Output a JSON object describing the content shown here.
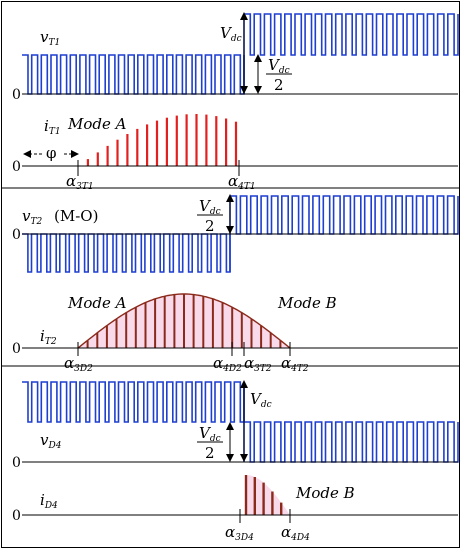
{
  "colors": {
    "switching": "#1f3fcf",
    "current_red": "#e32020",
    "current_dark": "#8b2a1a",
    "fill_pink": "#f7d3e8",
    "axis": "#000000"
  },
  "panel1": {
    "signal_main": "v",
    "signal_sub": "T1",
    "zero": "0",
    "vdc_main": "V",
    "vdc_sub": "dc",
    "half_num_main": "V",
    "half_num_sub": "dc",
    "half_den": "2"
  },
  "panel2": {
    "signal_main": "i",
    "signal_sub": "T1",
    "mode": "Mode A",
    "phi": "φ",
    "zero": "0",
    "alpha_3_main": "α",
    "alpha_3_sub": "3T1",
    "alpha_4_main": "α",
    "alpha_4_sub": "4T1"
  },
  "panel3": {
    "signal_main": "v",
    "signal_sub": "T2",
    "signal_suffix": "(M-O)",
    "zero": "0",
    "half_num_main": "V",
    "half_num_sub": "dc",
    "half_den": "2"
  },
  "panel4": {
    "signal_main": "i",
    "signal_sub": "T2",
    "mode_a": "Mode A",
    "mode_b": "Mode B",
    "zero": "0",
    "a3d2_main": "α",
    "a3d2_sub": "3D2",
    "a4d2_main": "α",
    "a4d2_sub": "4D2",
    "a3t2_main": "α",
    "a3t2_sub": "3T2",
    "a4t2_main": "α",
    "a4t2_sub": "4T2"
  },
  "panel5": {
    "signal_main": "v",
    "signal_sub": "D4",
    "zero": "0",
    "vdc_main": "V",
    "vdc_sub": "dc",
    "half_num_main": "V",
    "half_num_sub": "dc",
    "half_den": "2"
  },
  "panel6": {
    "signal_main": "i",
    "signal_sub": "D4",
    "mode": "Mode B",
    "zero": "0",
    "a3d4_main": "α",
    "a3d4_sub": "3D4",
    "a4d4_main": "α",
    "a4d4_sub": "4D4"
  }
}
